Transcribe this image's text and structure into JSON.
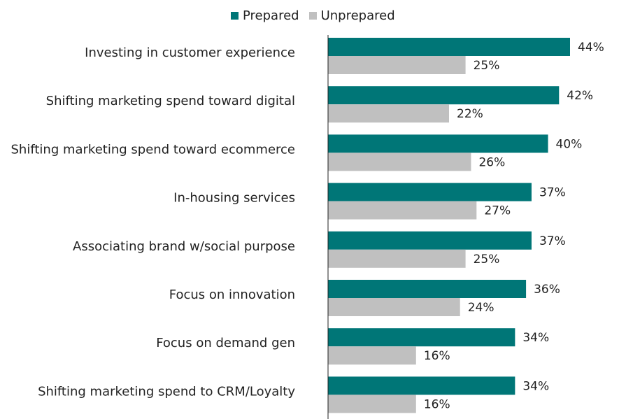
{
  "chart_data": {
    "type": "bar",
    "orientation": "horizontal",
    "categories": [
      "Investing in customer experience",
      "Shifting marketing spend toward digital",
      "Shifting marketing spend toward ecommerce",
      "In-housing services",
      "Associating brand w/social purpose",
      "Focus on innovation",
      "Focus on demand gen",
      "Shifting marketing spend to CRM/Loyalty"
    ],
    "series": [
      {
        "name": "Prepared",
        "color": "#007677",
        "values": [
          44,
          42,
          40,
          37,
          37,
          36,
          34,
          34
        ]
      },
      {
        "name": "Unprepared",
        "color": "#c0c0c0",
        "values": [
          25,
          22,
          26,
          27,
          25,
          24,
          16,
          16
        ]
      }
    ],
    "value_suffix": "%",
    "xlim": [
      0,
      44
    ],
    "legend_position": "top",
    "grid": false
  }
}
